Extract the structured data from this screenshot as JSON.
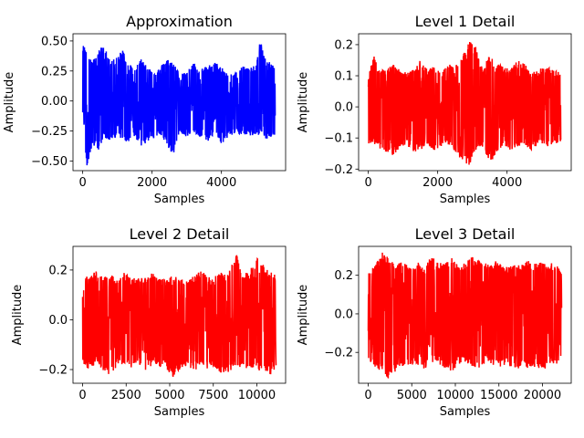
{
  "chart_data": [
    {
      "type": "line",
      "title": "Approximation",
      "xlabel": "Samples",
      "ylabel": "Amplitude",
      "color": "#0000ff",
      "xlim": [
        -280,
        5850
      ],
      "ylim": [
        -0.58,
        0.56
      ],
      "xticks": [
        0,
        2000,
        4000
      ],
      "xtick_labels": [
        "0",
        "2000",
        "4000"
      ],
      "yticks": [
        -0.5,
        -0.25,
        0.0,
        0.25,
        0.5
      ],
      "ytick_labels": [
        "−0.50",
        "−0.25",
        "0.00",
        "0.25",
        "0.50"
      ],
      "n_samples": 5550,
      "amplitude_range": [
        -0.55,
        0.51
      ],
      "x": [
        0,
        120,
        280,
        450,
        600,
        780,
        950,
        1150,
        1300,
        1500,
        1700,
        1850,
        2000,
        2200,
        2400,
        2600,
        2800,
        3000,
        3200,
        3400,
        3600,
        3800,
        4000,
        4200,
        4400,
        4600,
        4800,
        5000,
        5120,
        5300,
        5450,
        5550
      ],
      "y_max": [
        0.47,
        0.45,
        0.33,
        0.42,
        0.48,
        0.34,
        0.35,
        0.44,
        0.32,
        0.28,
        0.36,
        0.3,
        0.25,
        0.26,
        0.36,
        0.33,
        0.22,
        0.24,
        0.32,
        0.27,
        0.29,
        0.33,
        0.28,
        0.22,
        0.25,
        0.3,
        0.27,
        0.3,
        0.51,
        0.33,
        0.32,
        0.3
      ],
      "y_min": [
        -0.27,
        -0.55,
        -0.36,
        -0.42,
        -0.3,
        -0.33,
        -0.32,
        -0.31,
        -0.35,
        -0.3,
        -0.38,
        -0.34,
        -0.32,
        -0.28,
        -0.35,
        -0.47,
        -0.28,
        -0.3,
        -0.26,
        -0.31,
        -0.34,
        -0.28,
        -0.36,
        -0.3,
        -0.27,
        -0.28,
        -0.29,
        -0.3,
        -0.27,
        -0.32,
        -0.3,
        -0.28
      ]
    },
    {
      "type": "line",
      "title": "Level 1 Detail",
      "xlabel": "Samples",
      "ylabel": "Amplitude",
      "color": "#ff0000",
      "xlim": [
        -280,
        5850
      ],
      "ylim": [
        -0.205,
        0.235
      ],
      "xticks": [
        0,
        2000,
        4000
      ],
      "xtick_labels": [
        "0",
        "2000",
        "4000"
      ],
      "yticks": [
        -0.2,
        -0.1,
        0.0,
        0.1,
        0.2
      ],
      "ytick_labels": [
        "−0.2",
        "−0.1",
        "0.0",
        "0.1",
        "0.2"
      ],
      "n_samples": 5550,
      "amplitude_range": [
        -0.19,
        0.215
      ],
      "x": [
        0,
        150,
        300,
        500,
        700,
        900,
        1100,
        1300,
        1500,
        1700,
        1900,
        2100,
        2300,
        2500,
        2700,
        2900,
        3100,
        3300,
        3500,
        3700,
        3900,
        4100,
        4300,
        4500,
        4700,
        4900,
        5100,
        5300,
        5550
      ],
      "y_max": [
        0.1,
        0.17,
        0.12,
        0.12,
        0.14,
        0.12,
        0.11,
        0.12,
        0.15,
        0.12,
        0.13,
        0.11,
        0.14,
        0.13,
        0.16,
        0.21,
        0.2,
        0.12,
        0.17,
        0.14,
        0.13,
        0.12,
        0.15,
        0.14,
        0.11,
        0.12,
        0.13,
        0.12,
        0.11
      ],
      "y_min": [
        -0.12,
        -0.12,
        -0.13,
        -0.15,
        -0.16,
        -0.13,
        -0.12,
        -0.15,
        -0.14,
        -0.12,
        -0.14,
        -0.13,
        -0.12,
        -0.15,
        -0.17,
        -0.19,
        -0.14,
        -0.13,
        -0.18,
        -0.15,
        -0.12,
        -0.14,
        -0.13,
        -0.12,
        -0.14,
        -0.12,
        -0.13,
        -0.12,
        -0.12
      ]
    },
    {
      "type": "line",
      "title": "Level 2 Detail",
      "xlabel": "Samples",
      "ylabel": "Amplitude",
      "color": "#ff0000",
      "xlim": [
        -550,
        11650
      ],
      "ylim": [
        -0.255,
        0.295
      ],
      "xticks": [
        0,
        2500,
        5000,
        7500,
        10000
      ],
      "xtick_labels": [
        "0",
        "2500",
        "5000",
        "7500",
        "10000"
      ],
      "yticks": [
        -0.2,
        0.0,
        0.2
      ],
      "ytick_labels": [
        "−0.2",
        "0.0",
        "0.2"
      ],
      "n_samples": 11100,
      "amplitude_range": [
        -0.235,
        0.27
      ],
      "x": [
        0,
        400,
        800,
        1200,
        1600,
        2000,
        2400,
        2800,
        3200,
        3600,
        4000,
        4400,
        4800,
        5200,
        5600,
        6000,
        6400,
        6800,
        7200,
        7600,
        8000,
        8400,
        8800,
        9200,
        9600,
        10000,
        10400,
        10800,
        11100
      ],
      "y_max": [
        0.18,
        0.17,
        0.2,
        0.17,
        0.18,
        0.17,
        0.2,
        0.16,
        0.18,
        0.17,
        0.19,
        0.17,
        0.16,
        0.18,
        0.17,
        0.16,
        0.18,
        0.2,
        0.17,
        0.18,
        0.19,
        0.2,
        0.27,
        0.18,
        0.2,
        0.25,
        0.22,
        0.2,
        0.18
      ],
      "y_min": [
        -0.18,
        -0.2,
        -0.17,
        -0.21,
        -0.23,
        -0.19,
        -0.18,
        -0.2,
        -0.17,
        -0.21,
        -0.18,
        -0.19,
        -0.2,
        -0.23,
        -0.2,
        -0.18,
        -0.22,
        -0.17,
        -0.2,
        -0.19,
        -0.22,
        -0.21,
        -0.18,
        -0.2,
        -0.19,
        -0.21,
        -0.2,
        -0.22,
        -0.19
      ]
    },
    {
      "type": "line",
      "title": "Level 3 Detail",
      "xlabel": "Samples",
      "ylabel": "Amplitude",
      "color": "#ff0000",
      "xlim": [
        -1100,
        23300
      ],
      "ylim": [
        -0.36,
        0.35
      ],
      "xticks": [
        0,
        5000,
        10000,
        15000,
        20000
      ],
      "xtick_labels": [
        "0",
        "5000",
        "10000",
        "15000",
        "20000"
      ],
      "yticks": [
        -0.2,
        0.0,
        0.2
      ],
      "ytick_labels": [
        "−0.2",
        "0.0",
        "0.2"
      ],
      "n_samples": 22200,
      "amplitude_range": [
        -0.34,
        0.32
      ],
      "x": [
        0,
        800,
        1600,
        2400,
        3200,
        4000,
        4800,
        5600,
        6400,
        7200,
        8000,
        8800,
        9600,
        10400,
        11200,
        12000,
        12800,
        13600,
        14400,
        15200,
        16000,
        16800,
        17600,
        18400,
        19200,
        20000,
        20800,
        21600,
        22200
      ],
      "y_max": [
        0.22,
        0.25,
        0.32,
        0.3,
        0.26,
        0.27,
        0.24,
        0.28,
        0.23,
        0.3,
        0.27,
        0.26,
        0.29,
        0.24,
        0.27,
        0.3,
        0.28,
        0.26,
        0.27,
        0.28,
        0.24,
        0.27,
        0.26,
        0.29,
        0.26,
        0.28,
        0.27,
        0.25,
        0.23
      ],
      "y_min": [
        -0.25,
        -0.28,
        -0.3,
        -0.34,
        -0.3,
        -0.27,
        -0.28,
        -0.26,
        -0.29,
        -0.25,
        -0.27,
        -0.28,
        -0.3,
        -0.26,
        -0.25,
        -0.28,
        -0.29,
        -0.24,
        -0.27,
        -0.28,
        -0.26,
        -0.3,
        -0.27,
        -0.29,
        -0.28,
        -0.3,
        -0.26,
        -0.27,
        -0.25
      ]
    }
  ]
}
